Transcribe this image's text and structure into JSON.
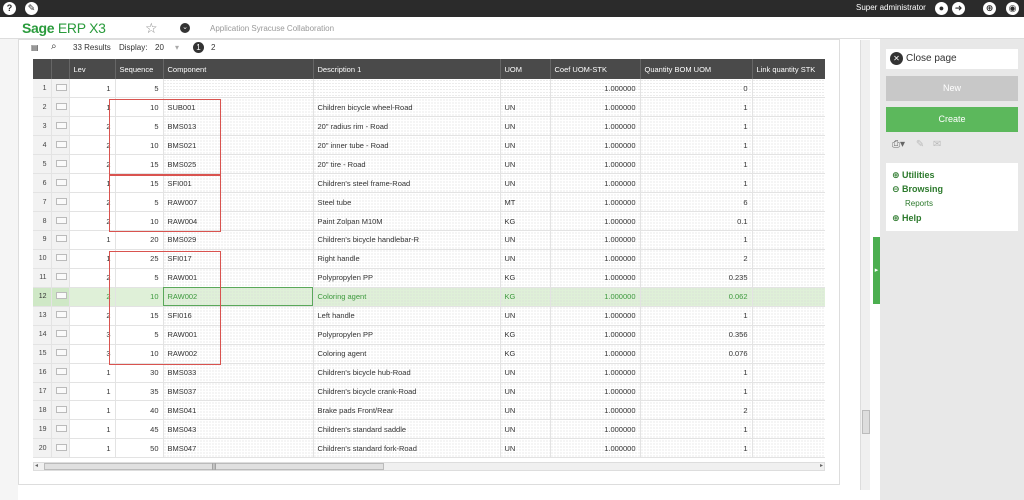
{
  "header": {
    "logo_sage": "Sage",
    "logo_product": "ERP X3",
    "app_name": "Application Syracuse Collaboration",
    "user": "Super administrator"
  },
  "toolbar": {
    "results": "33 Results",
    "display_label": "Display:",
    "display_value": "20",
    "page_current": "1",
    "page_next": "2"
  },
  "columns": [
    "Lev",
    "Sequence",
    "Component",
    "Description 1",
    "UOM",
    "Coef UOM-STK",
    "Quantity BOM UOM",
    "Link quantity STK"
  ],
  "rows": [
    {
      "n": "1",
      "lev": "1",
      "seq": "5",
      "comp": "",
      "desc": "",
      "uom": "",
      "coef": "1.000000",
      "qty": "0"
    },
    {
      "n": "2",
      "lev": "1",
      "seq": "10",
      "comp": "SUB001",
      "desc": "Children bicycle wheel-Road",
      "uom": "UN",
      "coef": "1.000000",
      "qty": "1"
    },
    {
      "n": "3",
      "lev": "2",
      "seq": "5",
      "comp": "BMS013",
      "desc": "20\" radius rim - Road",
      "uom": "UN",
      "coef": "1.000000",
      "qty": "1"
    },
    {
      "n": "4",
      "lev": "2",
      "seq": "10",
      "comp": "BMS021",
      "desc": "20\" inner tube - Road",
      "uom": "UN",
      "coef": "1.000000",
      "qty": "1"
    },
    {
      "n": "5",
      "lev": "2",
      "seq": "15",
      "comp": "BMS025",
      "desc": "20\" tire - Road",
      "uom": "UN",
      "coef": "1.000000",
      "qty": "1"
    },
    {
      "n": "6",
      "lev": "1",
      "seq": "15",
      "comp": "SFI001",
      "desc": "Children's steel frame-Road",
      "uom": "UN",
      "coef": "1.000000",
      "qty": "1"
    },
    {
      "n": "7",
      "lev": "2",
      "seq": "5",
      "comp": "RAW007",
      "desc": "Steel tube",
      "uom": "MT",
      "coef": "1.000000",
      "qty": "6"
    },
    {
      "n": "8",
      "lev": "2",
      "seq": "10",
      "comp": "RAW004",
      "desc": "Paint Zolpan M10M",
      "uom": "KG",
      "coef": "1.000000",
      "qty": "0.1"
    },
    {
      "n": "9",
      "lev": "1",
      "seq": "20",
      "comp": "BMS029",
      "desc": "Children's bicycle handlebar-R",
      "uom": "UN",
      "coef": "1.000000",
      "qty": "1"
    },
    {
      "n": "10",
      "lev": "1",
      "seq": "25",
      "comp": "SFI017",
      "desc": "Right handle",
      "uom": "UN",
      "coef": "1.000000",
      "qty": "2"
    },
    {
      "n": "11",
      "lev": "2",
      "seq": "5",
      "comp": "RAW001",
      "desc": "Polypropylen PP",
      "uom": "KG",
      "coef": "1.000000",
      "qty": "0.235"
    },
    {
      "n": "12",
      "lev": "2",
      "seq": "10",
      "comp": "RAW002",
      "desc": "Coloring agent",
      "uom": "KG",
      "coef": "1.000000",
      "qty": "0.062"
    },
    {
      "n": "13",
      "lev": "2",
      "seq": "15",
      "comp": "SFI016",
      "desc": "Left handle",
      "uom": "UN",
      "coef": "1.000000",
      "qty": "1"
    },
    {
      "n": "14",
      "lev": "3",
      "seq": "5",
      "comp": "RAW001",
      "desc": "Polypropylen PP",
      "uom": "KG",
      "coef": "1.000000",
      "qty": "0.356"
    },
    {
      "n": "15",
      "lev": "3",
      "seq": "10",
      "comp": "RAW002",
      "desc": "Coloring agent",
      "uom": "KG",
      "coef": "1.000000",
      "qty": "0.076"
    },
    {
      "n": "16",
      "lev": "1",
      "seq": "30",
      "comp": "BMS033",
      "desc": "Children's bicycle hub-Road",
      "uom": "UN",
      "coef": "1.000000",
      "qty": "1"
    },
    {
      "n": "17",
      "lev": "1",
      "seq": "35",
      "comp": "BMS037",
      "desc": "Children's bicycle crank-Road",
      "uom": "UN",
      "coef": "1.000000",
      "qty": "1"
    },
    {
      "n": "18",
      "lev": "1",
      "seq": "40",
      "comp": "BMS041",
      "desc": "Brake pads Front/Rear",
      "uom": "UN",
      "coef": "1.000000",
      "qty": "2"
    },
    {
      "n": "19",
      "lev": "1",
      "seq": "45",
      "comp": "BMS043",
      "desc": "Children's standard saddle",
      "uom": "UN",
      "coef": "1.000000",
      "qty": "1"
    },
    {
      "n": "20",
      "lev": "1",
      "seq": "50",
      "comp": "BMS047",
      "desc": "Children's standard fork-Road",
      "uom": "UN",
      "coef": "1.000000",
      "qty": "1"
    }
  ],
  "selected_row": "12",
  "side": {
    "close_page": "Close page",
    "new": "New",
    "create": "Create",
    "menu": {
      "utilities": "Utilities",
      "browsing": "Browsing",
      "reports": "Reports",
      "help": "Help"
    }
  },
  "colors": {
    "accent_green": "#5cb85c",
    "logo_green": "#2a9b3c",
    "highlight_red": "#d9534f"
  }
}
